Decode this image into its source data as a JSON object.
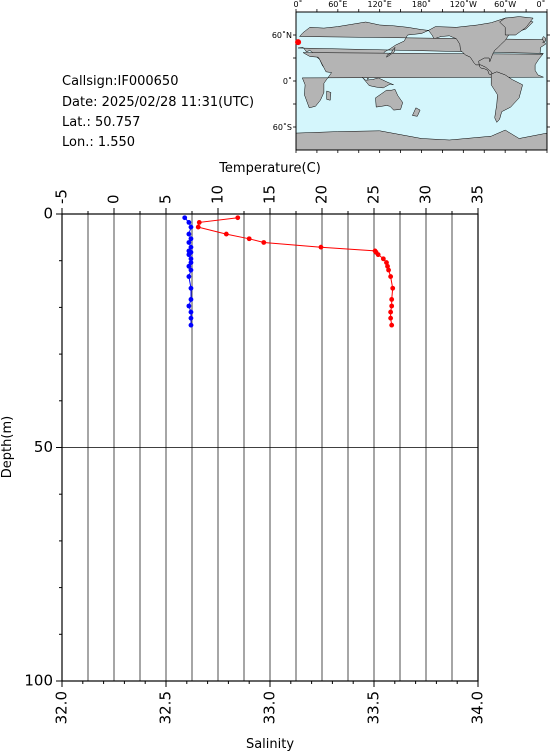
{
  "info": {
    "callsign": "Callsign:IF000650",
    "date": "Date:  2025/02/28 11:31(UTC)",
    "lat": "Lat.:   50.757",
    "lon": "Lon.:    1.550"
  },
  "map": {
    "top_labels": [
      "0˚",
      "60˚E",
      "120˚E",
      "180˚",
      "120˚W",
      "60˚W",
      "0˚"
    ],
    "left_labels": [
      "60˚N",
      "0˚",
      "60˚S"
    ],
    "ocean_color": "#d4f6fc",
    "land_color": "#b4b4b4",
    "marker_color": "#ff0000",
    "marker": {
      "lon": 1.55,
      "lat": 50.757
    }
  },
  "chart_data": {
    "type": "line",
    "top_axis": {
      "label": "Temperature(C)",
      "range": [
        -5,
        35
      ],
      "ticks": [
        -5,
        0,
        5,
        10,
        15,
        20,
        25,
        30,
        35
      ],
      "tick_labels": [
        "-5",
        "0",
        "5",
        "10",
        "15",
        "20",
        "25",
        "30",
        "35"
      ]
    },
    "bottom_axis": {
      "label": "Salinity",
      "range": [
        32.0,
        34.0
      ],
      "ticks": [
        32.0,
        32.5,
        33.0,
        33.5,
        34.0
      ],
      "tick_labels": [
        "32.0",
        "32.5",
        "33.0",
        "33.5",
        "34.0"
      ]
    },
    "y_axis": {
      "label": "Depth(m)",
      "range": [
        0,
        100
      ],
      "inverted": true,
      "ticks": [
        0,
        50,
        100
      ],
      "tick_labels": [
        "0",
        "50",
        "100"
      ]
    },
    "grid": true,
    "series": [
      {
        "axis": "top",
        "color": "#ff0000",
        "depth": [
          0.8,
          1.8,
          2.8,
          4.3,
          5.3,
          6.1,
          7.1,
          7.9,
          8.2,
          8.7,
          9.6,
          10.4,
          11.2,
          12.0,
          13.4,
          15.9,
          18.3,
          19.7,
          21.0,
          22.3,
          23.8
        ],
        "values": [
          11.9,
          8.2,
          8.1,
          10.8,
          13.0,
          14.4,
          19.9,
          25.1,
          25.2,
          25.4,
          25.9,
          26.2,
          26.3,
          26.4,
          26.6,
          26.8,
          26.7,
          26.7,
          26.6,
          26.6,
          26.7
        ]
      },
      {
        "axis": "bottom",
        "color": "#0000ff",
        "depth": [
          0.8,
          1.8,
          2.8,
          4.3,
          5.3,
          6.1,
          7.1,
          7.9,
          8.2,
          8.7,
          9.6,
          10.4,
          11.2,
          12.0,
          13.4,
          15.9,
          18.3,
          19.7,
          21.0,
          22.3,
          23.8
        ],
        "values": [
          32.59,
          32.61,
          32.62,
          32.61,
          32.62,
          32.61,
          32.62,
          32.61,
          32.62,
          32.61,
          32.62,
          32.62,
          32.61,
          32.62,
          32.61,
          32.62,
          32.62,
          32.61,
          32.62,
          32.62,
          32.62
        ]
      }
    ]
  }
}
